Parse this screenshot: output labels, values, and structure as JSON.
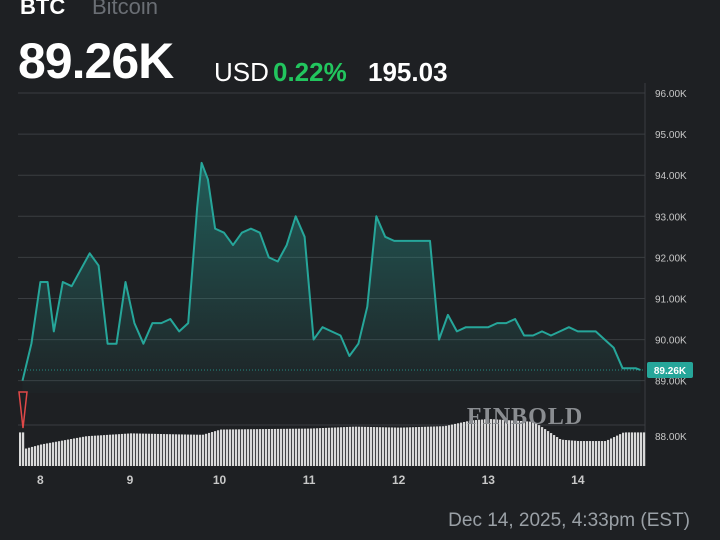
{
  "header": {
    "symbol": "BTC",
    "name": "Bitcoin",
    "price": "89.26K",
    "currency": "USD",
    "change_pct": "0.22%",
    "change_abs": "195.03"
  },
  "timestamp": "Dec 14, 2025, 4:33pm (EST)",
  "watermark": "FINBOLD",
  "colors": {
    "background": "#1e2023",
    "line": "#26a69a",
    "positive": "#22c55e",
    "volume": "#d9d9d9",
    "grid": "#3a3d41",
    "axis_text": "#c8c8c8",
    "marker": "#e04848"
  },
  "chart_data": {
    "type": "line",
    "title": "",
    "xlabel": "",
    "ylabel": "",
    "ylim": [
      88.7,
      96.0
    ],
    "xlim": [
      7.75,
      14.75
    ],
    "y_ticks": [
      "89.00K",
      "90.00K",
      "91.00K",
      "92.00K",
      "93.00K",
      "94.00K",
      "95.00K",
      "96.00K"
    ],
    "x_ticks": [
      "8",
      "9",
      "10",
      "11",
      "12",
      "13",
      "14"
    ],
    "last_price_label": "89.26K",
    "last_price": 89.26,
    "grid": true,
    "series": [
      {
        "x": [
          7.8,
          7.9,
          8.0,
          8.08,
          8.15,
          8.25,
          8.35,
          8.45,
          8.55,
          8.65,
          8.75,
          8.85,
          8.95,
          9.05,
          9.15,
          9.25,
          9.35,
          9.45,
          9.55,
          9.65,
          9.75,
          9.8,
          9.87,
          9.95,
          10.05,
          10.15,
          10.25,
          10.35,
          10.45,
          10.55,
          10.65,
          10.75,
          10.85,
          10.95,
          11.05,
          11.15,
          11.25,
          11.35,
          11.45,
          11.55,
          11.65,
          11.75,
          11.85,
          11.95,
          12.05,
          12.15,
          12.25,
          12.35,
          12.45,
          12.55,
          12.65,
          12.75,
          12.8,
          12.9,
          13.0,
          13.1,
          13.2,
          13.3,
          13.4,
          13.5,
          13.6,
          13.7,
          13.8,
          13.9,
          14.0,
          14.1,
          14.2,
          14.3,
          14.4,
          14.5,
          14.6,
          14.65,
          14.7
        ],
        "y": [
          89.0,
          89.9,
          91.4,
          91.4,
          90.2,
          91.4,
          91.3,
          91.7,
          92.1,
          91.8,
          89.9,
          89.9,
          91.4,
          90.4,
          89.9,
          90.4,
          90.4,
          90.5,
          90.2,
          90.4,
          93.2,
          94.3,
          93.9,
          92.7,
          92.6,
          92.3,
          92.6,
          92.7,
          92.6,
          92.0,
          91.9,
          92.3,
          93.0,
          92.5,
          90.0,
          90.3,
          90.2,
          90.1,
          89.6,
          89.9,
          90.8,
          93.0,
          92.5,
          92.4,
          92.4,
          92.4,
          92.4,
          92.4,
          90.0,
          90.6,
          90.2,
          90.3,
          90.3,
          90.3,
          90.3,
          90.4,
          90.4,
          90.5,
          90.1,
          90.1,
          90.2,
          90.1,
          90.2,
          90.3,
          90.2,
          90.2,
          90.2,
          90.0,
          89.8,
          89.3,
          89.3,
          89.3,
          89.26
        ]
      }
    ],
    "volume": {
      "x": [
        7.8,
        8.0,
        8.5,
        9.0,
        9.5,
        9.8,
        10.0,
        10.5,
        11.0,
        11.5,
        12.0,
        12.5,
        12.8,
        13.0,
        13.5,
        13.8,
        14.0,
        14.3,
        14.5,
        14.7
      ],
      "values": [
        0.35,
        0.45,
        0.62,
        0.68,
        0.66,
        0.65,
        0.76,
        0.77,
        0.78,
        0.82,
        0.8,
        0.83,
        0.95,
        0.98,
        0.92,
        0.55,
        0.52,
        0.52,
        0.7,
        0.7
      ]
    }
  }
}
